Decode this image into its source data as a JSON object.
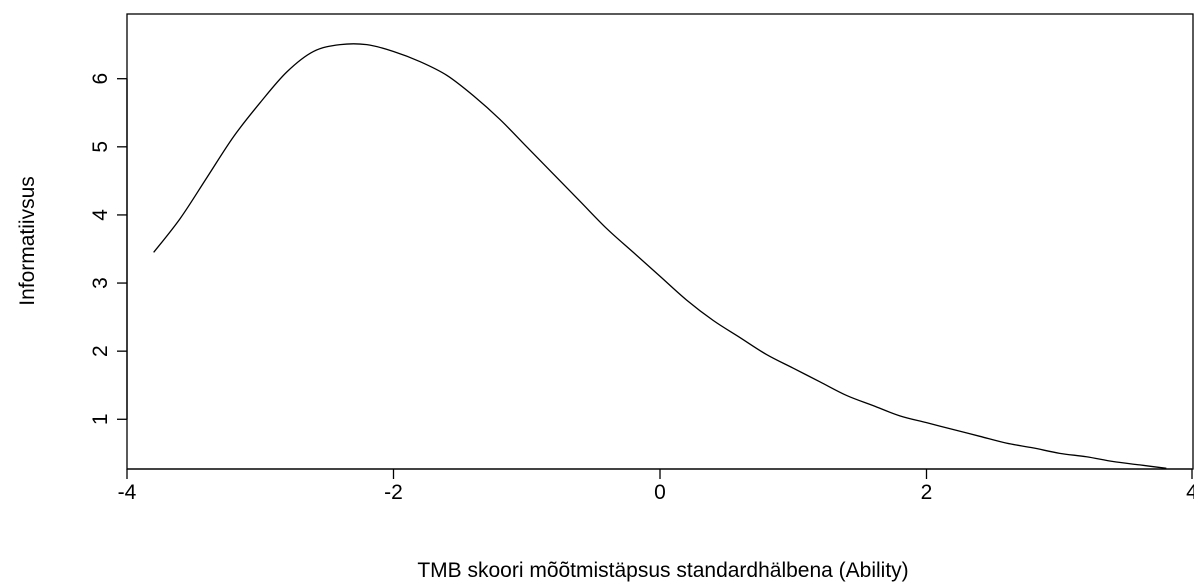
{
  "chart_data": {
    "type": "line",
    "title": "",
    "xlabel": "TMB skoori mõõtmistäpsus standardhälbena (Ability)",
    "ylabel": "Informatiivsus",
    "xlim": [
      -4,
      4
    ],
    "ylim": [
      0.27,
      6.95
    ],
    "x_ticks": [
      -4,
      -2,
      0,
      2,
      4
    ],
    "x_tick_labels": [
      "-4",
      "-2",
      "0",
      "2",
      "4"
    ],
    "y_ticks": [
      1,
      2,
      3,
      4,
      5,
      6
    ],
    "y_tick_labels": [
      "1",
      "2",
      "3",
      "4",
      "5",
      "6"
    ],
    "grid": false,
    "legend": "none",
    "line_color": "#000000",
    "series": [
      {
        "x": [
          -3.8,
          -3.6,
          -3.4,
          -3.2,
          -3.0,
          -2.8,
          -2.6,
          -2.4,
          -2.2,
          -2.0,
          -1.8,
          -1.6,
          -1.4,
          -1.2,
          -1.0,
          -0.8,
          -0.6,
          -0.4,
          -0.2,
          0.0,
          0.2,
          0.4,
          0.6,
          0.8,
          1.0,
          1.2,
          1.4,
          1.6,
          1.8,
          2.0,
          2.2,
          2.4,
          2.6,
          2.8,
          3.0,
          3.2,
          3.4,
          3.6,
          3.8
        ],
        "values": [
          3.45,
          3.95,
          4.55,
          5.15,
          5.65,
          6.1,
          6.4,
          6.5,
          6.5,
          6.4,
          6.25,
          6.05,
          5.75,
          5.4,
          5.0,
          4.6,
          4.2,
          3.8,
          3.45,
          3.1,
          2.75,
          2.45,
          2.2,
          1.95,
          1.75,
          1.55,
          1.35,
          1.2,
          1.05,
          0.95,
          0.85,
          0.75,
          0.65,
          0.58,
          0.5,
          0.45,
          0.38,
          0.33,
          0.28
        ]
      }
    ]
  }
}
